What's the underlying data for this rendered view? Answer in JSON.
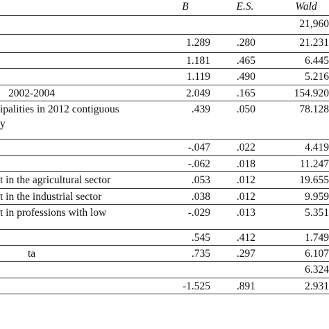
{
  "table": {
    "header": {
      "b": "B",
      "es": "E.S.",
      "wald": "Wald"
    },
    "rows": [
      {
        "wald": "21,960"
      },
      {
        "b": "1.289",
        "es": ".280",
        "wald": "21.231"
      },
      {
        "b": "1.181",
        "es": ".465",
        "wald": "6.445"
      },
      {
        "b": "1.119",
        "es": ".490",
        "wald": "5.216"
      },
      {
        "label": "2002-2004",
        "b": "2.049",
        "es": ".165",
        "wald": "154.920"
      },
      {
        "label": "ipalities in 2012 contiguous",
        "label_line2": "y",
        "b": ".439",
        "es": ".050",
        "wald": "78.128"
      },
      {
        "b": "-.047",
        "es": ".022",
        "wald": "4.419"
      },
      {
        "b": "-.062",
        "es": ".018",
        "wald": "11.247"
      },
      {
        "label": "t in the agricultural sector",
        "b": ".053",
        "es": ".012",
        "wald": "19.655"
      },
      {
        "label": "t in the industrial sector",
        "b": ".038",
        "es": ".012",
        "wald": "9.959"
      },
      {
        "label": "t in professions with low",
        "b": "-.029",
        "es": ".013",
        "wald": "5.351"
      },
      {
        "b": ".545",
        "es": ".412",
        "wald": "1.749"
      },
      {
        "label": "ta",
        "b": ".735",
        "es": ".297",
        "wald": "6.107"
      },
      {
        "wald": "6.324"
      },
      {
        "b": "-1.525",
        "es": ".891",
        "wald": "2.931"
      }
    ]
  }
}
